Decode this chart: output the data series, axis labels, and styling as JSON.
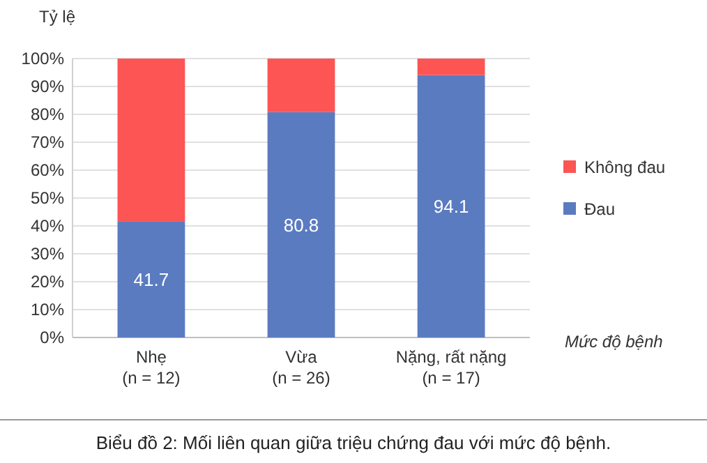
{
  "chart_data": {
    "type": "bar",
    "stacked": true,
    "ylabel": "Tỷ lệ",
    "xlabel": "Mức độ bệnh",
    "title": "Biểu đồ 2: Mối liên quan giữa triệu chứng đau với mức độ bệnh.",
    "categories": [
      "Nhẹ\n(n = 12)",
      "Vừa\n(n = 26)",
      "Nặng, rất nặng\n(n = 17)"
    ],
    "series": [
      {
        "name": "Đau",
        "color": "#5b7bc0",
        "values": [
          41.7,
          80.8,
          94.1
        ],
        "value_labels": [
          "41.7",
          "80.8",
          "94.1"
        ]
      },
      {
        "name": "Không đau",
        "color": "#fd5454",
        "values": [
          58.3,
          19.2,
          5.9
        ]
      }
    ],
    "ylim": [
      0,
      100
    ],
    "yticks": [
      {
        "value": 0,
        "label": "0%"
      },
      {
        "value": 10,
        "label": "10%"
      },
      {
        "value": 20,
        "label": "20%"
      },
      {
        "value": 30,
        "label": "30%"
      },
      {
        "value": 40,
        "label": "40%"
      },
      {
        "value": 50,
        "label": "50%"
      },
      {
        "value": 60,
        "label": "60%"
      },
      {
        "value": 70,
        "label": "70%"
      },
      {
        "value": 80,
        "label": "80%"
      },
      {
        "value": 90,
        "label": "90%"
      },
      {
        "value": 100,
        "label": "100%"
      }
    ],
    "grid": true,
    "legend": "right"
  }
}
